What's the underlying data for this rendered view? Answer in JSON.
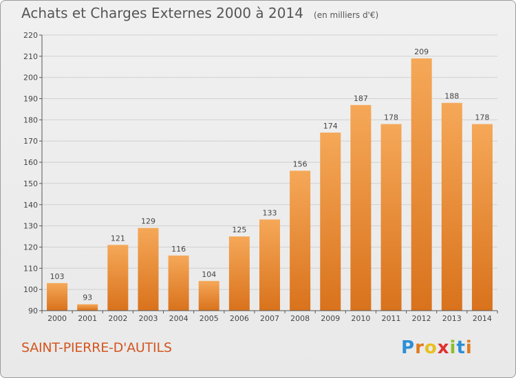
{
  "title": "Achats et Charges Externes 2000 à 2014",
  "subtitle": "(en milliers d'€)",
  "commune": "SAINT-PIERRE-D'AUTILS",
  "logo": {
    "letters": [
      "P",
      "r",
      "o",
      "x",
      "i",
      "t",
      "i"
    ],
    "colors": [
      "#2b8fd6",
      "#e07a1f",
      "#e8c020",
      "#e03030",
      "#8bbf2a",
      "#2b8fd6",
      "#e07a1f"
    ]
  },
  "colors": {
    "bar_top": "#f5a858",
    "bar_bottom": "#d9721c",
    "commune_text": "#d4551f"
  },
  "chart_data": {
    "type": "bar",
    "categories": [
      "2000",
      "2001",
      "2002",
      "2003",
      "2004",
      "2005",
      "2006",
      "2007",
      "2008",
      "2009",
      "2010",
      "2011",
      "2012",
      "2013",
      "2014"
    ],
    "values": [
      103,
      93,
      121,
      129,
      116,
      104,
      125,
      133,
      156,
      174,
      187,
      178,
      209,
      188,
      178
    ],
    "ylim": [
      90,
      220
    ],
    "yticks": [
      90,
      100,
      110,
      120,
      130,
      140,
      150,
      160,
      170,
      180,
      190,
      200,
      210,
      220
    ],
    "grid": true,
    "data_labels": true
  }
}
